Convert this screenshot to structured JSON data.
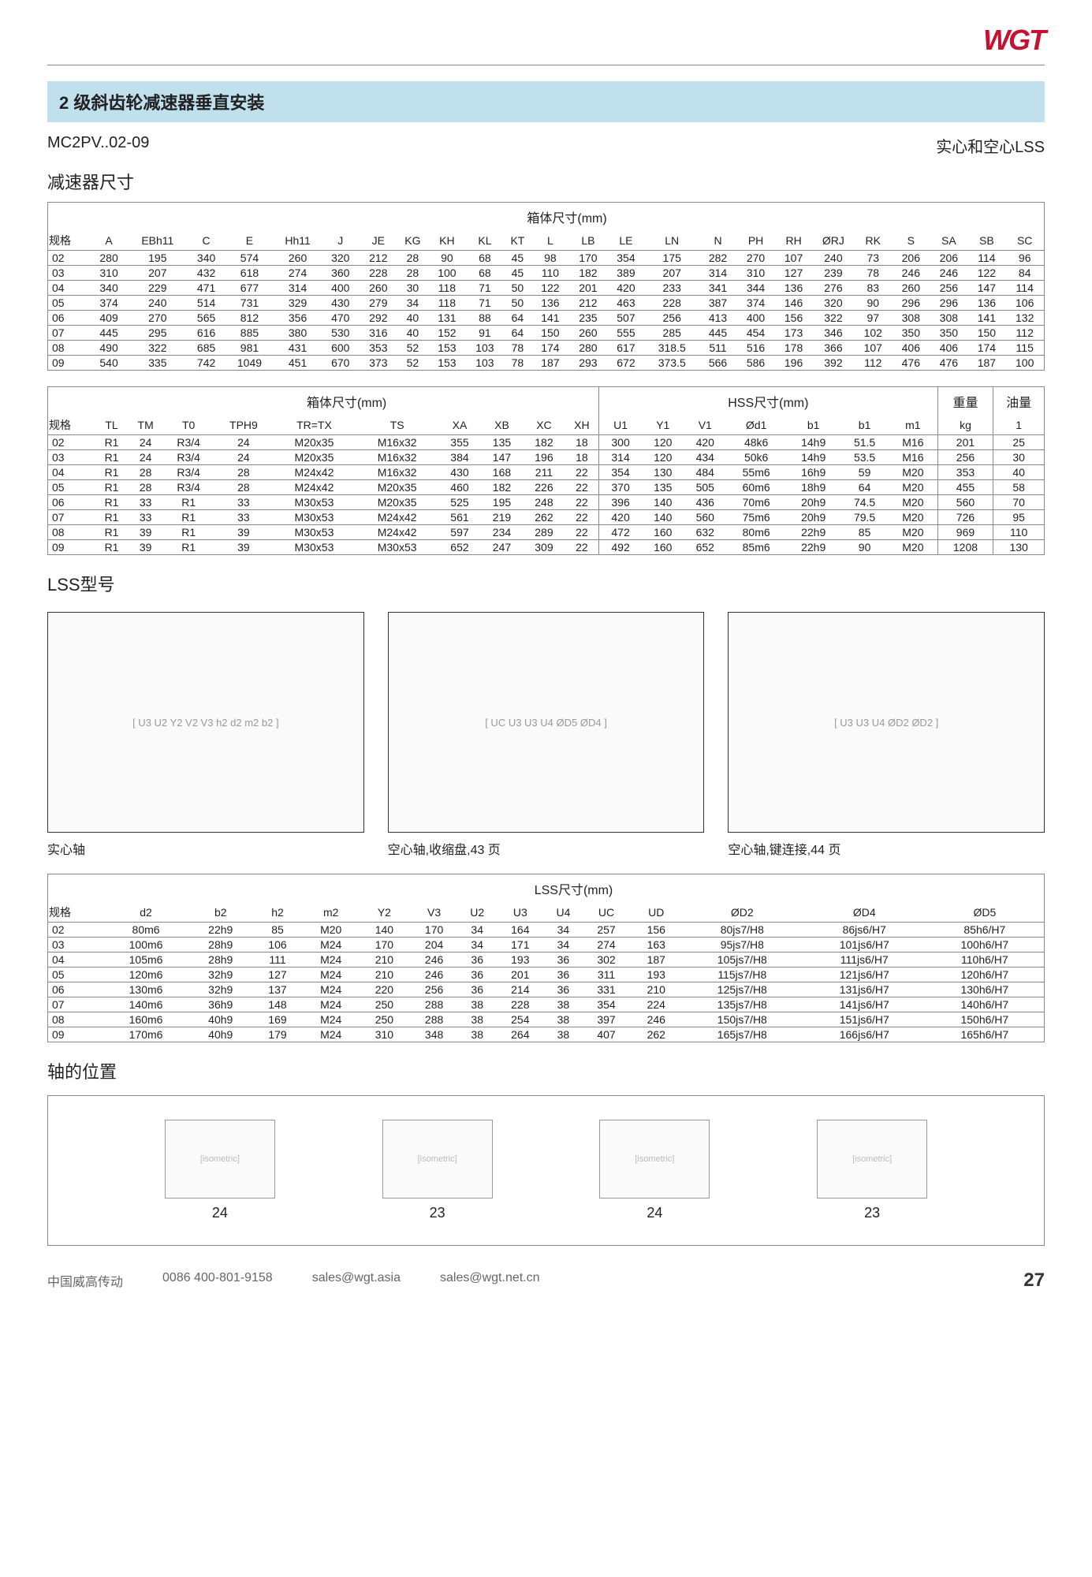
{
  "logo": "WGT",
  "sectionTitle": "2 级斜齿轮减速器垂直安装",
  "modelCode": "MC2PV..02-09",
  "rightHeader": "实心和空心LSS",
  "dimTitle": "减速器尺寸",
  "boxDimHeader": "箱体尺寸(mm)",
  "hssHeader": "HSS尺寸(mm)",
  "weightHeader": "重量",
  "oilHeader": "油量",
  "specLabel": "规格",
  "lssModelTitle": "LSS型号",
  "lssDimHeader": "LSS尺寸(mm)",
  "shaftPosTitle": "轴的位置",
  "table1": {
    "cols": [
      "A",
      "EBh11",
      "C",
      "E",
      "Hh11",
      "J",
      "JE",
      "KG",
      "KH",
      "KL",
      "KT",
      "L",
      "LB",
      "LE",
      "LN",
      "N",
      "PH",
      "RH",
      "ØRJ",
      "RK",
      "S",
      "SA",
      "SB",
      "SC"
    ],
    "rows": [
      [
        "02",
        "280",
        "195",
        "340",
        "574",
        "260",
        "320",
        "212",
        "28",
        "90",
        "68",
        "45",
        "98",
        "170",
        "354",
        "175",
        "282",
        "270",
        "107",
        "240",
        "73",
        "206",
        "206",
        "114",
        "96"
      ],
      [
        "03",
        "310",
        "207",
        "432",
        "618",
        "274",
        "360",
        "228",
        "28",
        "100",
        "68",
        "45",
        "110",
        "182",
        "389",
        "207",
        "314",
        "310",
        "127",
        "239",
        "78",
        "246",
        "246",
        "122",
        "84"
      ],
      [
        "04",
        "340",
        "229",
        "471",
        "677",
        "314",
        "400",
        "260",
        "30",
        "118",
        "71",
        "50",
        "122",
        "201",
        "420",
        "233",
        "341",
        "344",
        "136",
        "276",
        "83",
        "260",
        "256",
        "147",
        "114"
      ],
      [
        "05",
        "374",
        "240",
        "514",
        "731",
        "329",
        "430",
        "279",
        "34",
        "118",
        "71",
        "50",
        "136",
        "212",
        "463",
        "228",
        "387",
        "374",
        "146",
        "320",
        "90",
        "296",
        "296",
        "136",
        "106"
      ],
      [
        "06",
        "409",
        "270",
        "565",
        "812",
        "356",
        "470",
        "292",
        "40",
        "131",
        "88",
        "64",
        "141",
        "235",
        "507",
        "256",
        "413",
        "400",
        "156",
        "322",
        "97",
        "308",
        "308",
        "141",
        "132"
      ],
      [
        "07",
        "445",
        "295",
        "616",
        "885",
        "380",
        "530",
        "316",
        "40",
        "152",
        "91",
        "64",
        "150",
        "260",
        "555",
        "285",
        "445",
        "454",
        "173",
        "346",
        "102",
        "350",
        "350",
        "150",
        "112"
      ],
      [
        "08",
        "490",
        "322",
        "685",
        "981",
        "431",
        "600",
        "353",
        "52",
        "153",
        "103",
        "78",
        "174",
        "280",
        "617",
        "318.5",
        "511",
        "516",
        "178",
        "366",
        "107",
        "406",
        "406",
        "174",
        "115"
      ],
      [
        "09",
        "540",
        "335",
        "742",
        "1049",
        "451",
        "670",
        "373",
        "52",
        "153",
        "103",
        "78",
        "187",
        "293",
        "672",
        "373.5",
        "566",
        "586",
        "196",
        "392",
        "112",
        "476",
        "476",
        "187",
        "100"
      ]
    ]
  },
  "table2": {
    "boxCols": [
      "TL",
      "TM",
      "T0",
      "TPH9",
      "TR=TX",
      "TS",
      "XA",
      "XB",
      "XC",
      "XH"
    ],
    "hssCols": [
      "U1",
      "Y1",
      "V1",
      "Ød1",
      "b1",
      "b1",
      "m1"
    ],
    "wCol": "kg",
    "oCol": "1",
    "rows": [
      [
        "02",
        "R1",
        "24",
        "R3/4",
        "24",
        "M20x35",
        "M16x32",
        "355",
        "135",
        "182",
        "18",
        "300",
        "120",
        "420",
        "48k6",
        "14h9",
        "51.5",
        "M16",
        "201",
        "25"
      ],
      [
        "03",
        "R1",
        "24",
        "R3/4",
        "24",
        "M20x35",
        "M16x32",
        "384",
        "147",
        "196",
        "18",
        "314",
        "120",
        "434",
        "50k6",
        "14h9",
        "53.5",
        "M16",
        "256",
        "30"
      ],
      [
        "04",
        "R1",
        "28",
        "R3/4",
        "28",
        "M24x42",
        "M16x32",
        "430",
        "168",
        "211",
        "22",
        "354",
        "130",
        "484",
        "55m6",
        "16h9",
        "59",
        "M20",
        "353",
        "40"
      ],
      [
        "05",
        "R1",
        "28",
        "R3/4",
        "28",
        "M24x42",
        "M20x35",
        "460",
        "182",
        "226",
        "22",
        "370",
        "135",
        "505",
        "60m6",
        "18h9",
        "64",
        "M20",
        "455",
        "58"
      ],
      [
        "06",
        "R1",
        "33",
        "R1",
        "33",
        "M30x53",
        "M20x35",
        "525",
        "195",
        "248",
        "22",
        "396",
        "140",
        "436",
        "70m6",
        "20h9",
        "74.5",
        "M20",
        "560",
        "70"
      ],
      [
        "07",
        "R1",
        "33",
        "R1",
        "33",
        "M30x53",
        "M24x42",
        "561",
        "219",
        "262",
        "22",
        "420",
        "140",
        "560",
        "75m6",
        "20h9",
        "79.5",
        "M20",
        "726",
        "95"
      ],
      [
        "08",
        "R1",
        "39",
        "R1",
        "39",
        "M30x53",
        "M24x42",
        "597",
        "234",
        "289",
        "22",
        "472",
        "160",
        "632",
        "80m6",
        "22h9",
        "85",
        "M20",
        "969",
        "110"
      ],
      [
        "09",
        "R1",
        "39",
        "R1",
        "39",
        "M30x53",
        "M30x53",
        "652",
        "247",
        "309",
        "22",
        "492",
        "160",
        "652",
        "85m6",
        "22h9",
        "90",
        "M20",
        "1208",
        "130"
      ]
    ]
  },
  "diagrams": [
    {
      "caption": "实心轴",
      "labels": "U3 U2 Y2 V2 V3 h2 d2 m2 b2"
    },
    {
      "caption": "空心轴,收缩盘,43 页",
      "labels": "UC U3 U3 U4 ØD5 ØD4"
    },
    {
      "caption": "空心轴,键连接,44 页",
      "labels": "U3 U3 U4 ØD2 ØD2"
    }
  ],
  "table3": {
    "cols": [
      "d2",
      "b2",
      "h2",
      "m2",
      "Y2",
      "V3",
      "U2",
      "U3",
      "U4",
      "UC",
      "UD",
      "ØD2",
      "ØD4",
      "ØD5"
    ],
    "rows": [
      [
        "02",
        "80m6",
        "22h9",
        "85",
        "M20",
        "140",
        "170",
        "34",
        "164",
        "34",
        "257",
        "156",
        "80js7/H8",
        "86js6/H7",
        "85h6/H7"
      ],
      [
        "03",
        "100m6",
        "28h9",
        "106",
        "M24",
        "170",
        "204",
        "34",
        "171",
        "34",
        "274",
        "163",
        "95js7/H8",
        "101js6/H7",
        "100h6/H7"
      ],
      [
        "04",
        "105m6",
        "28h9",
        "111",
        "M24",
        "210",
        "246",
        "36",
        "193",
        "36",
        "302",
        "187",
        "105js7/H8",
        "111js6/H7",
        "110h6/H7"
      ],
      [
        "05",
        "120m6",
        "32h9",
        "127",
        "M24",
        "210",
        "246",
        "36",
        "201",
        "36",
        "311",
        "193",
        "115js7/H8",
        "121js6/H7",
        "120h6/H7"
      ],
      [
        "06",
        "130m6",
        "32h9",
        "137",
        "M24",
        "220",
        "256",
        "36",
        "214",
        "36",
        "331",
        "210",
        "125js7/H8",
        "131js6/H7",
        "130h6/H7"
      ],
      [
        "07",
        "140m6",
        "36h9",
        "148",
        "M24",
        "250",
        "288",
        "38",
        "228",
        "38",
        "354",
        "224",
        "135js7/H8",
        "141js6/H7",
        "140h6/H7"
      ],
      [
        "08",
        "160m6",
        "40h9",
        "169",
        "M24",
        "250",
        "288",
        "38",
        "254",
        "38",
        "397",
        "246",
        "150js7/H8",
        "151js6/H7",
        "150h6/H7"
      ],
      [
        "09",
        "170m6",
        "40h9",
        "179",
        "M24",
        "310",
        "348",
        "38",
        "264",
        "38",
        "407",
        "262",
        "165js7/H8",
        "166js6/H7",
        "165h6/H7"
      ]
    ]
  },
  "shaftPositions": [
    "24",
    "23",
    "24",
    "23"
  ],
  "footer": {
    "company": "中国威高传动",
    "phone": "0086 400-801-9158",
    "email1": "sales@wgt.asia",
    "email2": "sales@wgt.net.cn",
    "page": "27"
  }
}
